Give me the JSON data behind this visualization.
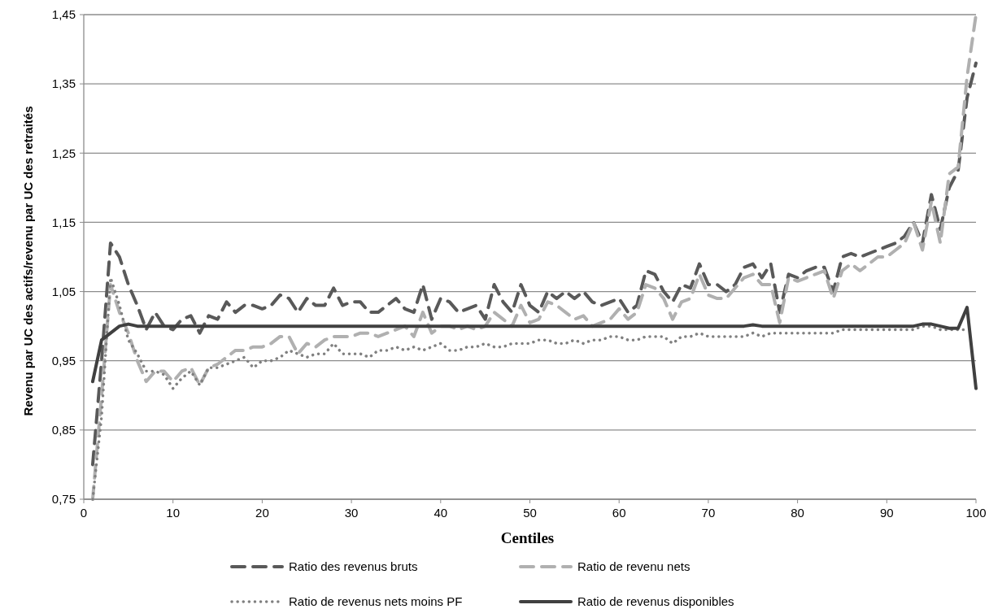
{
  "chart_data": {
    "type": "line",
    "xlabel": "Centiles",
    "ylabel": "Revenu par UC des actifs/revenu par UC des retraités",
    "x": [
      1,
      2,
      3,
      4,
      5,
      6,
      7,
      8,
      9,
      10,
      11,
      12,
      13,
      14,
      15,
      16,
      17,
      18,
      19,
      20,
      21,
      22,
      23,
      24,
      25,
      26,
      27,
      28,
      29,
      30,
      31,
      32,
      33,
      34,
      35,
      36,
      37,
      38,
      39,
      40,
      41,
      42,
      43,
      44,
      45,
      46,
      47,
      48,
      49,
      50,
      51,
      52,
      53,
      54,
      55,
      56,
      57,
      58,
      59,
      60,
      61,
      62,
      63,
      64,
      65,
      66,
      67,
      68,
      69,
      70,
      71,
      72,
      73,
      74,
      75,
      76,
      77,
      78,
      79,
      80,
      81,
      82,
      83,
      84,
      85,
      86,
      87,
      88,
      89,
      90,
      91,
      92,
      93,
      94,
      95,
      96,
      97,
      98,
      99,
      100
    ],
    "series": [
      {
        "name": "Ratio des revenus bruts",
        "color": "#595959",
        "line_style": "dashed",
        "values": [
          0.8,
          0.95,
          1.12,
          1.1,
          1.06,
          1.03,
          0.995,
          1.02,
          1.0,
          0.995,
          1.01,
          1.015,
          0.99,
          1.015,
          1.01,
          1.035,
          1.02,
          1.03,
          1.03,
          1.025,
          1.03,
          1.045,
          1.04,
          1.02,
          1.04,
          1.03,
          1.03,
          1.055,
          1.03,
          1.035,
          1.035,
          1.02,
          1.02,
          1.03,
          1.04,
          1.025,
          1.02,
          1.06,
          1.01,
          1.04,
          1.035,
          1.02,
          1.025,
          1.03,
          1.01,
          1.06,
          1.035,
          1.02,
          1.06,
          1.03,
          1.02,
          1.05,
          1.04,
          1.05,
          1.04,
          1.05,
          1.035,
          1.03,
          1.035,
          1.04,
          1.02,
          1.03,
          1.08,
          1.075,
          1.05,
          1.035,
          1.06,
          1.055,
          1.09,
          1.06,
          1.06,
          1.05,
          1.06,
          1.085,
          1.09,
          1.07,
          1.09,
          1.02,
          1.075,
          1.07,
          1.08,
          1.085,
          1.085,
          1.05,
          1.1,
          1.105,
          1.1,
          1.105,
          1.11,
          1.115,
          1.12,
          1.13,
          1.15,
          1.12,
          1.19,
          1.14,
          1.2,
          1.225,
          1.33,
          1.38
        ]
      },
      {
        "name": "Ratio de revenu nets",
        "color": "#b0b0b0",
        "line_style": "dashed",
        "values": [
          0.75,
          0.9,
          1.06,
          1.02,
          0.99,
          0.95,
          0.92,
          0.935,
          0.935,
          0.92,
          0.935,
          0.94,
          0.915,
          0.94,
          0.945,
          0.955,
          0.965,
          0.965,
          0.97,
          0.97,
          0.975,
          0.985,
          0.985,
          0.96,
          0.975,
          0.97,
          0.98,
          0.985,
          0.985,
          0.985,
          0.99,
          0.99,
          0.985,
          0.99,
          0.995,
          1.0,
          0.985,
          1.02,
          0.99,
          1.0,
          1.0,
          0.995,
          1.0,
          0.995,
          1.0,
          1.02,
          1.01,
          1.0,
          1.03,
          1.005,
          1.01,
          1.035,
          1.03,
          1.02,
          1.01,
          1.015,
          1.0,
          1.005,
          1.01,
          1.025,
          1.01,
          1.02,
          1.06,
          1.055,
          1.04,
          1.01,
          1.035,
          1.04,
          1.075,
          1.045,
          1.04,
          1.04,
          1.055,
          1.07,
          1.075,
          1.06,
          1.06,
          1.005,
          1.07,
          1.065,
          1.07,
          1.075,
          1.08,
          1.04,
          1.08,
          1.09,
          1.08,
          1.09,
          1.1,
          1.1,
          1.11,
          1.12,
          1.15,
          1.11,
          1.18,
          1.12,
          1.22,
          1.23,
          1.36,
          1.45
        ]
      },
      {
        "name": "Ratio de revenus nets moins PF",
        "color": "#808080",
        "line_style": "dotted",
        "values": [
          0.75,
          0.87,
          1.07,
          1.03,
          0.98,
          0.96,
          0.935,
          0.935,
          0.93,
          0.91,
          0.925,
          0.935,
          0.915,
          0.94,
          0.94,
          0.945,
          0.95,
          0.955,
          0.94,
          0.95,
          0.95,
          0.955,
          0.965,
          0.96,
          0.955,
          0.96,
          0.96,
          0.975,
          0.96,
          0.96,
          0.96,
          0.955,
          0.965,
          0.965,
          0.97,
          0.965,
          0.97,
          0.965,
          0.97,
          0.975,
          0.965,
          0.965,
          0.97,
          0.97,
          0.975,
          0.97,
          0.97,
          0.975,
          0.975,
          0.975,
          0.98,
          0.98,
          0.975,
          0.975,
          0.98,
          0.975,
          0.98,
          0.98,
          0.985,
          0.985,
          0.98,
          0.98,
          0.985,
          0.985,
          0.985,
          0.975,
          0.985,
          0.985,
          0.99,
          0.985,
          0.985,
          0.985,
          0.985,
          0.985,
          0.99,
          0.985,
          0.99,
          0.99,
          0.99,
          0.99,
          0.99,
          0.99,
          0.99,
          0.99,
          0.995,
          0.995,
          0.995,
          0.995,
          0.995,
          0.995,
          0.995,
          0.995,
          0.995,
          1.0,
          1.0,
          0.995,
          0.995,
          0.995,
          0.995,
          null
        ]
      },
      {
        "name": "Ratio de revenus disponibles",
        "color": "#404040",
        "line_style": "solid",
        "values": [
          0.92,
          0.98,
          0.99,
          1.0,
          1.003,
          1.0,
          1.0,
          1.0,
          1.0,
          1.0,
          1.0,
          1.0,
          1.0,
          1.0,
          1.0,
          1.0,
          1.0,
          1.0,
          1.0,
          1.0,
          1.0,
          1.0,
          1.0,
          1.0,
          1.0,
          1.0,
          1.0,
          1.0,
          1.0,
          1.0,
          1.0,
          1.0,
          1.0,
          1.0,
          1.0,
          1.0,
          1.0,
          1.0,
          1.0,
          1.0,
          1.0,
          1.0,
          1.0,
          1.0,
          1.0,
          1.0,
          1.0,
          1.0,
          1.0,
          1.0,
          1.0,
          1.0,
          1.0,
          1.0,
          1.0,
          1.0,
          1.0,
          1.0,
          1.0,
          1.0,
          1.0,
          1.0,
          1.0,
          1.0,
          1.0,
          1.0,
          1.0,
          1.0,
          1.0,
          1.0,
          1.0,
          1.0,
          1.0,
          1.0,
          1.002,
          1.0,
          1.0,
          1.0,
          1.0,
          1.0,
          1.0,
          1.0,
          1.0,
          1.0,
          1.0,
          1.0,
          1.0,
          1.0,
          1.0,
          1.0,
          1.0,
          1.0,
          1.0,
          1.003,
          1.003,
          1.0,
          0.997,
          0.997,
          1.027,
          0.91
        ]
      }
    ],
    "xlim": [
      0,
      100
    ],
    "xticks": [
      0,
      10,
      20,
      30,
      40,
      50,
      60,
      70,
      80,
      90,
      100
    ],
    "ylim": [
      0.75,
      1.45
    ],
    "yticks": [
      {
        "value": 0.75,
        "label": "0,75"
      },
      {
        "value": 0.85,
        "label": "0,85"
      },
      {
        "value": 0.95,
        "label": "0,95"
      },
      {
        "value": 1.05,
        "label": "1,05"
      },
      {
        "value": 1.15,
        "label": "1,15"
      },
      {
        "value": 1.25,
        "label": "1,25"
      },
      {
        "value": 1.35,
        "label": "1,35"
      },
      {
        "value": 1.45,
        "label": "1,45"
      }
    ],
    "grid": "y",
    "legend": "bottom",
    "marker": "none"
  }
}
